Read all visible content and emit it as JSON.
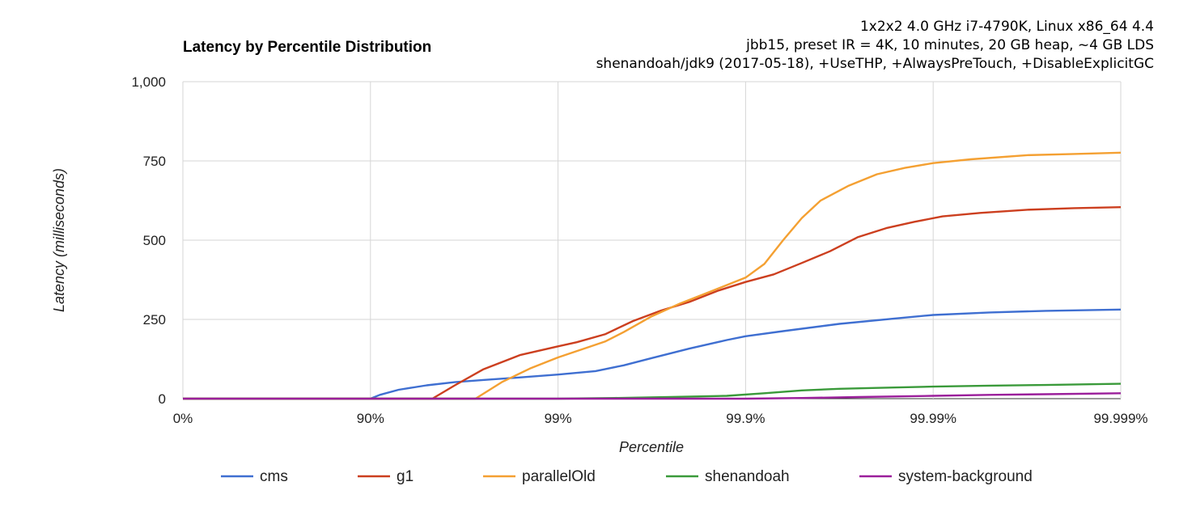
{
  "chart_data": {
    "type": "line",
    "title": "Latency by Percentile Distribution",
    "subtitle": [
      "1x2x2 4.0 GHz i7-4790K, Linux x86_64 4.4",
      "jbb15, preset IR = 4K, 10 minutes, 20 GB heap, ~4 GB LDS",
      "shenandoah/jdk9 (2017-05-18), +UseTHP, +AlwaysPreTouch, +DisableExplicitGC"
    ],
    "xlabel": "Percentile",
    "ylabel": "Latency (milliseconds)",
    "x_scale": "log-percentile (nines)",
    "x_ticks": [
      {
        "nines": 0,
        "label": "0%"
      },
      {
        "nines": 1,
        "label": "90%"
      },
      {
        "nines": 2,
        "label": "99%"
      },
      {
        "nines": 3,
        "label": "99.9%"
      },
      {
        "nines": 4,
        "label": "99.99%"
      },
      {
        "nines": 5,
        "label": "99.999%"
      }
    ],
    "y_ticks": [
      {
        "value": 0,
        "label": "0"
      },
      {
        "value": 250,
        "label": "250"
      },
      {
        "value": 500,
        "label": "500"
      },
      {
        "value": 750,
        "label": "750"
      },
      {
        "value": 1000,
        "label": "1,000"
      }
    ],
    "ylim": [
      0,
      1000
    ],
    "xlim": [
      0,
      5
    ],
    "grid": true,
    "legend_position": "bottom",
    "series": [
      {
        "name": "cms",
        "color": "#3f6fd1",
        "points": [
          [
            0,
            0
          ],
          [
            1,
            0
          ],
          [
            1.05,
            12
          ],
          [
            1.15,
            28
          ],
          [
            1.3,
            42
          ],
          [
            1.45,
            52
          ],
          [
            1.6,
            59
          ],
          [
            1.8,
            67
          ],
          [
            2.0,
            76
          ],
          [
            2.2,
            87
          ],
          [
            2.35,
            105
          ],
          [
            2.5,
            128
          ],
          [
            2.7,
            158
          ],
          [
            2.9,
            185
          ],
          [
            3.0,
            197
          ],
          [
            3.2,
            213
          ],
          [
            3.5,
            236
          ],
          [
            3.8,
            253
          ],
          [
            4.0,
            264
          ],
          [
            4.3,
            272
          ],
          [
            4.6,
            277
          ],
          [
            5.0,
            281
          ]
        ]
      },
      {
        "name": "g1",
        "color": "#cc3f1f",
        "points": [
          [
            0,
            0
          ],
          [
            1.33,
            0
          ],
          [
            1.45,
            42
          ],
          [
            1.6,
            92
          ],
          [
            1.8,
            138
          ],
          [
            2.0,
            165
          ],
          [
            2.1,
            178
          ],
          [
            2.25,
            203
          ],
          [
            2.4,
            245
          ],
          [
            2.55,
            278
          ],
          [
            2.7,
            305
          ],
          [
            2.85,
            340
          ],
          [
            3.0,
            368
          ],
          [
            3.15,
            392
          ],
          [
            3.3,
            428
          ],
          [
            3.45,
            465
          ],
          [
            3.6,
            510
          ],
          [
            3.75,
            538
          ],
          [
            3.9,
            558
          ],
          [
            4.05,
            575
          ],
          [
            4.25,
            586
          ],
          [
            4.5,
            596
          ],
          [
            4.75,
            601
          ],
          [
            5.0,
            604
          ]
        ]
      },
      {
        "name": "parallelOld",
        "color": "#f4a032",
        "points": [
          [
            0,
            0
          ],
          [
            1.56,
            0
          ],
          [
            1.7,
            52
          ],
          [
            1.85,
            95
          ],
          [
            2.0,
            130
          ],
          [
            2.15,
            160
          ],
          [
            2.25,
            180
          ],
          [
            2.35,
            210
          ],
          [
            2.5,
            260
          ],
          [
            2.65,
            300
          ],
          [
            2.8,
            335
          ],
          [
            3.0,
            382
          ],
          [
            3.1,
            425
          ],
          [
            3.2,
            500
          ],
          [
            3.3,
            570
          ],
          [
            3.4,
            625
          ],
          [
            3.55,
            672
          ],
          [
            3.7,
            708
          ],
          [
            3.85,
            728
          ],
          [
            4.0,
            743
          ],
          [
            4.2,
            755
          ],
          [
            4.5,
            768
          ],
          [
            4.75,
            772
          ],
          [
            5.0,
            776
          ]
        ]
      },
      {
        "name": "shenandoah",
        "color": "#3a9a3a",
        "points": [
          [
            0,
            0
          ],
          [
            2.0,
            0
          ],
          [
            2.3,
            2
          ],
          [
            2.6,
            5
          ],
          [
            2.9,
            9
          ],
          [
            3.1,
            17
          ],
          [
            3.3,
            26
          ],
          [
            3.5,
            31
          ],
          [
            3.7,
            34
          ],
          [
            4.0,
            38
          ],
          [
            4.3,
            41
          ],
          [
            4.6,
            43
          ],
          [
            5.0,
            47
          ]
        ]
      },
      {
        "name": "system-background",
        "color": "#9b1f9b",
        "points": [
          [
            0,
            0
          ],
          [
            3.0,
            0
          ],
          [
            3.3,
            2
          ],
          [
            3.6,
            5
          ],
          [
            4.0,
            9
          ],
          [
            4.3,
            12
          ],
          [
            4.6,
            14
          ],
          [
            5.0,
            17
          ]
        ]
      }
    ]
  }
}
